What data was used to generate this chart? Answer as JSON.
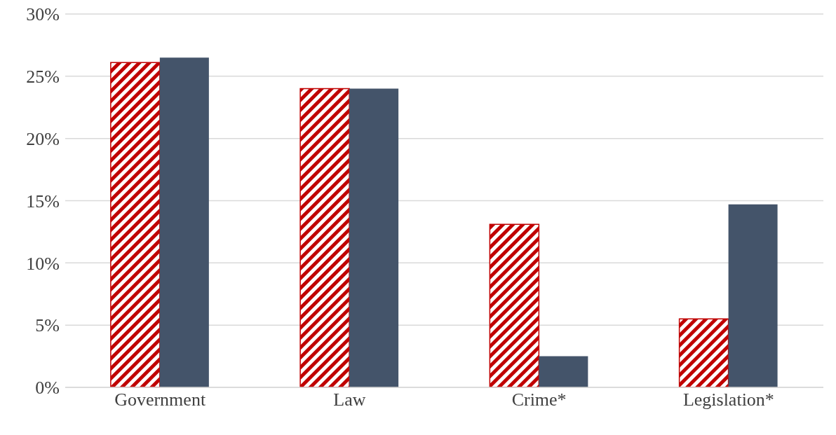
{
  "chart_data": {
    "type": "bar",
    "categories": [
      "Government",
      "Law",
      "Crime*",
      "Legislation*"
    ],
    "series": [
      {
        "color": "#c00000",
        "values": [
          26.1,
          24.0,
          13.1,
          5.5
        ]
      },
      {
        "color": "#44546a",
        "values": [
          26.5,
          24.0,
          2.5,
          14.7
        ]
      }
    ],
    "ylim": [
      0,
      30
    ],
    "yticks": [
      {
        "value": 0,
        "label": "0%"
      },
      {
        "value": 5,
        "label": "5%"
      },
      {
        "value": 10,
        "label": "10%"
      },
      {
        "value": 15,
        "label": "15%"
      },
      {
        "value": 20,
        "label": "20%"
      },
      {
        "value": 25,
        "label": "25%"
      },
      {
        "value": 30,
        "label": "30%"
      }
    ],
    "grid": "y"
  }
}
